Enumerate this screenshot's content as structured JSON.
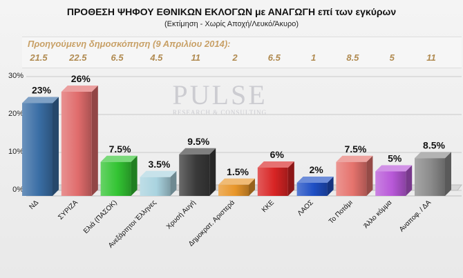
{
  "chart_data": {
    "type": "bar",
    "title": "ΠΡΟΘΕΣΗ ΨΗΦΟΥ ΕΘΝΙΚΩΝ ΕΚΛΟΓΩΝ με ΑΝΑΓΩΓΗ επί των εγκύρων",
    "subtitle": "(Εκτίμηση  -  Χωρίς Αποχή/Λευκό/Άκυρο)",
    "categories": [
      "ΝΔ",
      "ΣΥΡΙΖΑ",
      "Ελιά (ΠΑΣΟΚ)",
      "Ανεξάρτητοι Έλληνες",
      "Χρυσή Αυγή",
      "Δημοκρατ. Αριστερά",
      "ΚΚΕ",
      "ΛΑΟΣ",
      "Το Ποτάμι",
      "Άλλο κόμμα",
      "Αναποφ. / ΔΑ"
    ],
    "values": [
      23,
      26,
      7.5,
      3.5,
      9.5,
      1.5,
      6,
      2,
      7.5,
      5,
      8.5
    ],
    "value_labels": [
      "23%",
      "26%",
      "7.5%",
      "3.5%",
      "9.5%",
      "1.5%",
      "6%",
      "2%",
      "7.5%",
      "5%",
      "8.5%"
    ],
    "colors": [
      "#3a6ea5",
      "#e06c6c",
      "#33c433",
      "#a9d3df",
      "#3a3a3a",
      "#e8962a",
      "#d82424",
      "#1f4fc4",
      "#e5736d",
      "#b858d8",
      "#8a8a8a"
    ],
    "ylim": [
      0,
      30
    ],
    "yticks": [
      0,
      10,
      20,
      30
    ],
    "ytick_labels": [
      "0%",
      "10%",
      "20%",
      "30%"
    ],
    "grid": true,
    "previous_poll": {
      "label": "Προηγούμενη δημοσκόπηση (9 Απριλίου 2014):",
      "values": [
        "21.5",
        "22.5",
        "6.5",
        "4.5",
        "11",
        "2",
        "6.5",
        "1",
        "8.5",
        "5",
        "11"
      ]
    }
  },
  "watermark": {
    "main": "PULSE",
    "sub": "RESEARCH & CONSULTING"
  }
}
